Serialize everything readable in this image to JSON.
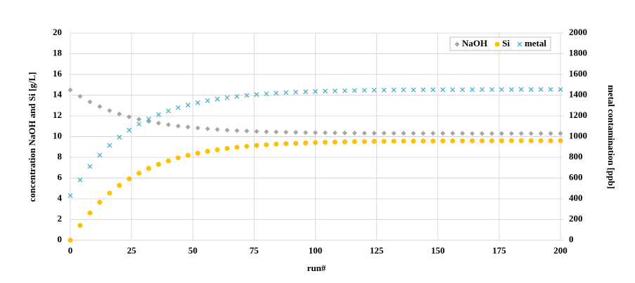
{
  "chart_data": {
    "type": "scatter",
    "x_label": "run#",
    "y_label": "concentration  NaOH and Si [g/L]",
    "y2_label": "metal contamination  [ppb]",
    "x": [
      0,
      4,
      8,
      12,
      16,
      20,
      24,
      28,
      32,
      36,
      40,
      44,
      48,
      52,
      56,
      60,
      64,
      68,
      72,
      76,
      80,
      84,
      88,
      92,
      96,
      100,
      104,
      108,
      112,
      116,
      120,
      124,
      128,
      132,
      136,
      140,
      144,
      148,
      152,
      156,
      160,
      164,
      168,
      172,
      176,
      180,
      184,
      188,
      192,
      196,
      200
    ],
    "series": [
      {
        "name": "NaOH",
        "color": "#a6a6a6",
        "marker": "diamond",
        "axis": "y",
        "values": [
          14.5,
          13.88,
          13.35,
          12.9,
          12.51,
          12.19,
          11.91,
          11.67,
          11.47,
          11.3,
          11.15,
          11.02,
          10.92,
          10.83,
          10.75,
          10.68,
          10.62,
          10.58,
          10.54,
          10.5,
          10.47,
          10.45,
          10.42,
          10.41,
          10.39,
          10.38,
          10.37,
          10.36,
          10.35,
          10.34,
          10.33,
          10.33,
          10.33,
          10.32,
          10.32,
          10.32,
          10.31,
          10.31,
          10.31,
          10.31,
          10.31,
          10.3,
          10.3,
          10.3,
          10.3,
          10.3,
          10.3,
          10.3,
          10.3,
          10.3,
          10.3
        ]
      },
      {
        "name": "Si",
        "color": "#ffc000",
        "marker": "circle",
        "axis": "y",
        "values": [
          0,
          1.42,
          2.63,
          3.66,
          4.54,
          5.29,
          5.92,
          6.47,
          6.93,
          7.32,
          7.66,
          7.95,
          8.19,
          8.4,
          8.58,
          8.73,
          8.86,
          8.97,
          9.06,
          9.14,
          9.21,
          9.27,
          9.32,
          9.36,
          9.39,
          9.42,
          9.45,
          9.47,
          9.49,
          9.51,
          9.52,
          9.53,
          9.54,
          9.55,
          9.56,
          9.56,
          9.57,
          9.57,
          9.58,
          9.58,
          9.58,
          9.59,
          9.59,
          9.59,
          9.59,
          9.6,
          9.6,
          9.6,
          9.6,
          9.6,
          9.6
        ]
      },
      {
        "name": "metal",
        "color": "#4bacc6",
        "marker": "x",
        "axis": "y2",
        "values": [
          430,
          582,
          711,
          821,
          915,
          995,
          1062,
          1121,
          1170,
          1212,
          1248,
          1279,
          1304,
          1327,
          1346,
          1362,
          1376,
          1387,
          1398,
          1406,
          1413,
          1419,
          1425,
          1429,
          1433,
          1436,
          1439,
          1441,
          1443,
          1445,
          1447,
          1448,
          1449,
          1450,
          1451,
          1451,
          1452,
          1452,
          1453,
          1453,
          1453,
          1454,
          1454,
          1454,
          1454,
          1454,
          1455,
          1455,
          1455,
          1455,
          1455
        ]
      }
    ],
    "xlim": [
      0,
      200
    ],
    "xticks": [
      0,
      25,
      50,
      75,
      100,
      125,
      150,
      175,
      200
    ],
    "ylim": [
      0,
      20
    ],
    "yticks": [
      0,
      2,
      4,
      6,
      8,
      10,
      12,
      14,
      16,
      18,
      20
    ],
    "y2lim": [
      0,
      2000
    ],
    "y2ticks": [
      0,
      200,
      400,
      600,
      800,
      1000,
      1200,
      1400,
      1600,
      1800,
      2000
    ],
    "grid": true,
    "legend": "top-right"
  }
}
